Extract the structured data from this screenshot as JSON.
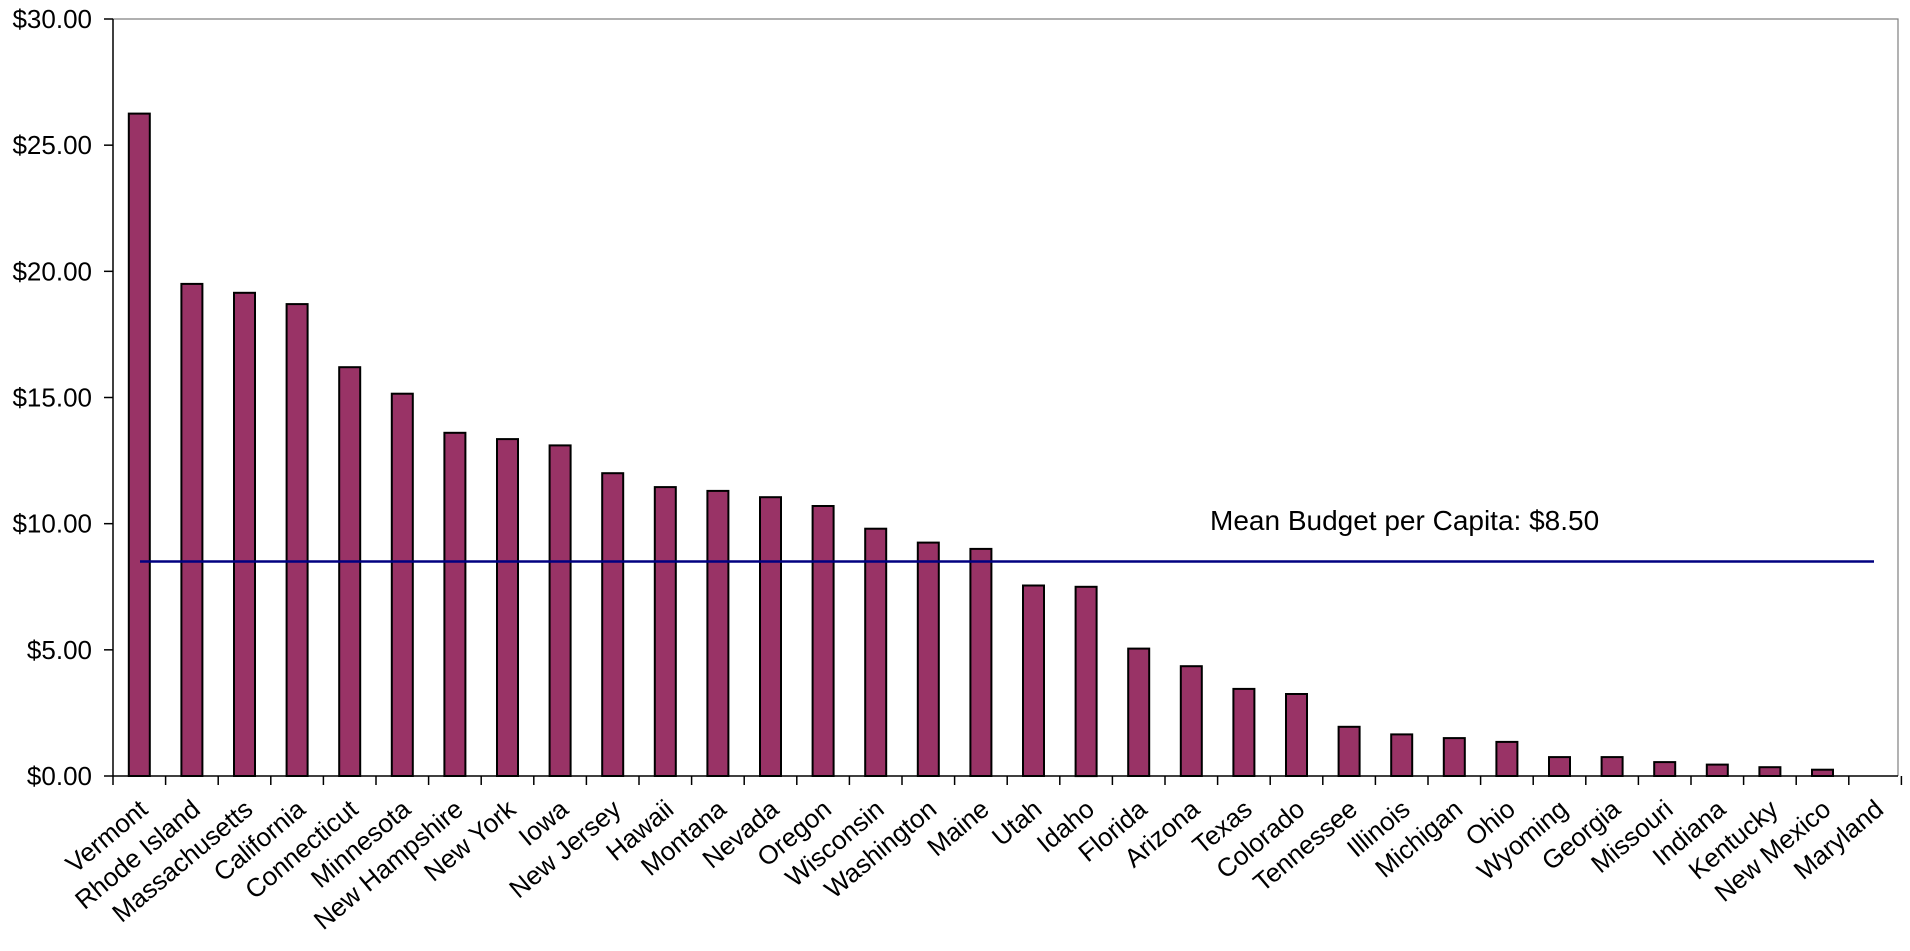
{
  "chart_data": {
    "type": "bar",
    "title": "",
    "xlabel": "",
    "ylabel": "",
    "ylim": [
      0,
      30
    ],
    "ytick_values": [
      0,
      5,
      10,
      15,
      20,
      25,
      30
    ],
    "ytick_labels": [
      "$0.00",
      "$5.00",
      "$10.00",
      "$15.00",
      "$20.00",
      "$25.00",
      "$30.00"
    ],
    "categories": [
      "Vermont",
      "Rhode Island",
      "Massachusetts",
      "California",
      "Connecticut",
      "Minnesota",
      "New Hampshire",
      "New York",
      "Iowa",
      "New Jersey",
      "Hawaii",
      "Montana",
      "Nevada",
      "Oregon",
      "Wisconsin",
      "Washington",
      "Maine",
      "Utah",
      "Idaho",
      "Florida",
      "Arizona",
      "Texas",
      "Colorado",
      "Tennessee",
      "Illinois",
      "Michigan",
      "Ohio",
      "Wyoming",
      "Georgia",
      "Missouri",
      "Indiana",
      "Kentucky",
      "New Mexico",
      "Maryland"
    ],
    "values": [
      26.25,
      19.5,
      19.15,
      18.7,
      16.2,
      15.15,
      13.6,
      13.35,
      13.1,
      12.0,
      11.45,
      11.3,
      11.05,
      10.7,
      9.8,
      9.25,
      9.0,
      7.55,
      7.5,
      5.05,
      4.35,
      3.45,
      3.25,
      1.95,
      1.65,
      1.5,
      1.35,
      0.75,
      0.75,
      0.55,
      0.45,
      0.35,
      0.25,
      0.0
    ],
    "reference_line": {
      "value": 8.5,
      "label": "Mean Budget per Capita: $8.50"
    },
    "grid": false,
    "legend": "none",
    "colors": {
      "bar_fill": "#993366",
      "bar_stroke": "#000000",
      "reference_line": "#000080",
      "axis": "#000000",
      "frame": "#808080"
    }
  }
}
